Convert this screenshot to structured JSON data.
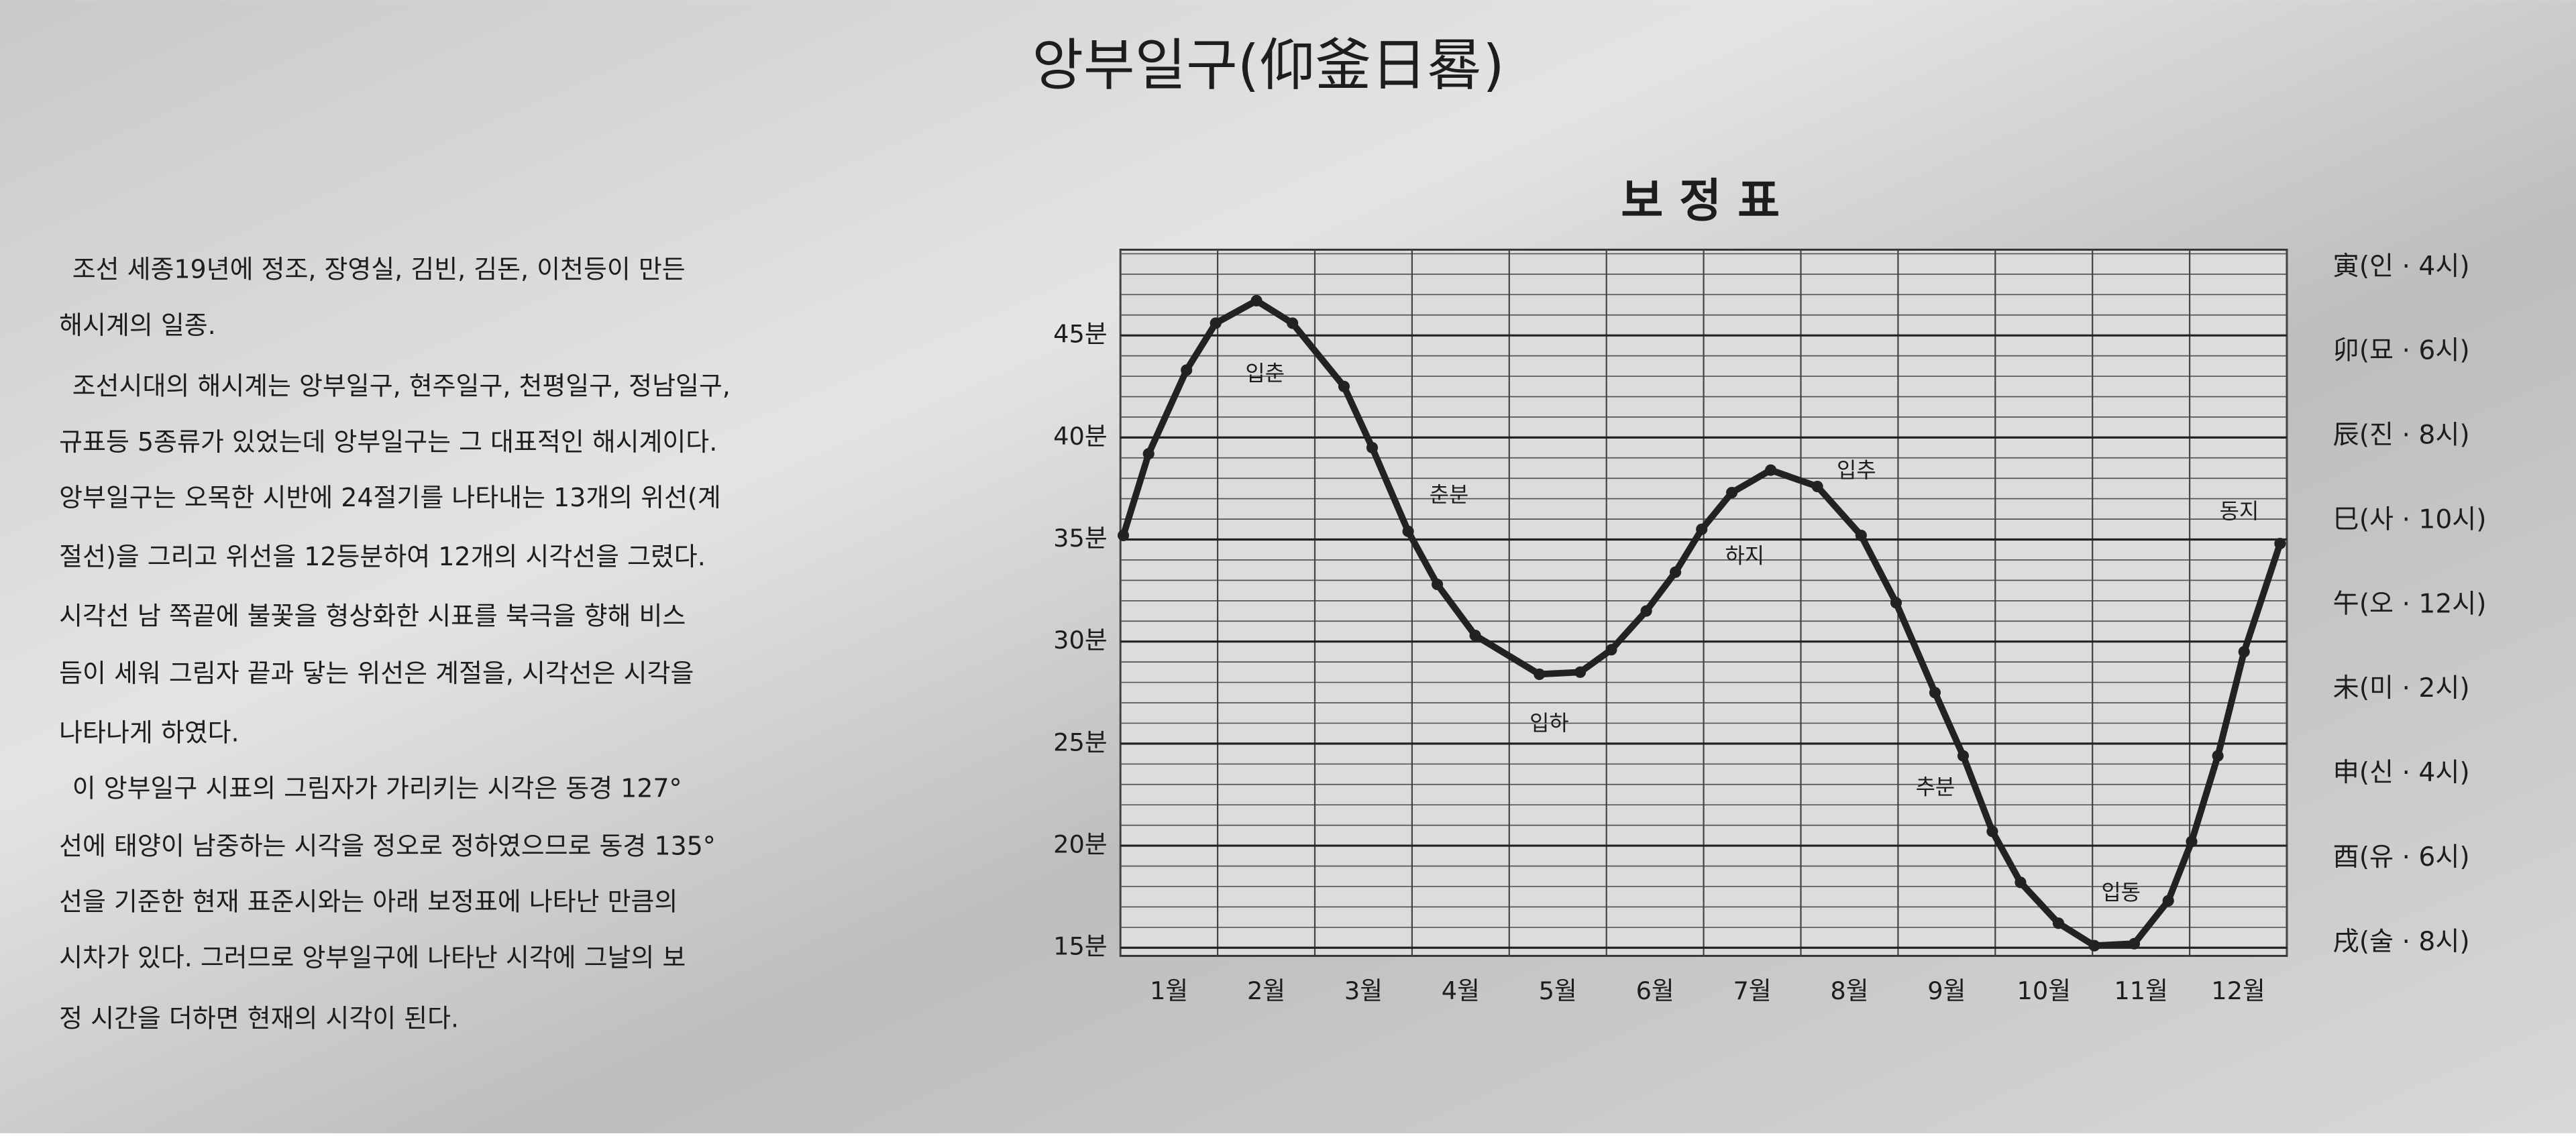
{
  "title": "앙부일구(仰釜日晷)",
  "text": [
    "조선 세종19년에 정조, 장영실, 김빈, 김돈, 이천등이 만든",
    "해시계의 일종.",
    "조선시대의 해시계는 앙부일구, 현주일구, 천평일구, 정남일구,",
    "규표등 5종류가 있었는데 앙부일구는 그 대표적인 해시계이다.",
    "앙부일구는 오목한 시반에 24절기를 나타내는 13개의 위선(계",
    "절선)을 그리고 위선을 12등분하여 12개의 시각선을 그렸다.",
    "시각선 남 쪽끝에 불꽃을 형상화한 시표를 북극을 향해 비스",
    "듬이 세워 그림자 끝과 닿는 위선은 계절을, 시각선은 시각을",
    "나타나게 하였다.",
    "이 앙부일구 시표의 그림자가 가리키는 시각은 동경 127°",
    "선에 태양이 남중하는 시각을 정오로 정하였으므로 동경 135°",
    "선을 기준한 현재 표준시와는 아래 보정표에 나타난 만큼의",
    "시차가 있다. 그러므로 앙부일구에 나타난 시각에 그날의 보",
    "정 시간을 더하면 현재의 시각이 된다."
  ],
  "chart_data": {
    "type": "line",
    "title": "보 정 표",
    "x": [
      0.03,
      0.29,
      0.68,
      0.98,
      1.4,
      1.77,
      2.3,
      2.59,
      2.96,
      3.26,
      3.65,
      4.31,
      4.73,
      5.05,
      5.41,
      5.71,
      5.98,
      6.29,
      6.69,
      7.17,
      7.62,
      7.98,
      8.38,
      8.67,
      8.97,
      9.26,
      9.65,
      10.02,
      10.43,
      10.78,
      11.02,
      11.29,
      11.56,
      11.93
    ],
    "values": [
      35.2,
      39.2,
      43.3,
      45.6,
      46.7,
      45.6,
      42.5,
      39.5,
      35.4,
      32.8,
      30.3,
      28.4,
      28.5,
      29.6,
      31.5,
      33.4,
      35.5,
      37.3,
      38.4,
      37.6,
      35.2,
      31.9,
      27.5,
      24.4,
      20.7,
      18.2,
      16.2,
      15.1,
      15.2,
      17.3,
      20.2,
      24.4,
      29.5,
      34.8
    ],
    "color": "#222222",
    "xlim": [
      0,
      12
    ],
    "xticks": [
      {
        "value": 0.5,
        "label": "1월"
      },
      {
        "value": 1.5,
        "label": "2월"
      },
      {
        "value": 2.5,
        "label": "3월"
      },
      {
        "value": 3.5,
        "label": "4월"
      },
      {
        "value": 4.5,
        "label": "5월"
      },
      {
        "value": 5.5,
        "label": "6월"
      },
      {
        "value": 6.5,
        "label": "7월"
      },
      {
        "value": 7.5,
        "label": "8월"
      },
      {
        "value": 8.5,
        "label": "9월"
      },
      {
        "value": 9.5,
        "label": "10월"
      },
      {
        "value": 10.5,
        "label": "11월"
      },
      {
        "value": 11.5,
        "label": "12월"
      }
    ],
    "ylim": [
      14.6,
      49.2
    ],
    "yticks": [
      {
        "value": 15,
        "label": "15분"
      },
      {
        "value": 20,
        "label": "20분"
      },
      {
        "value": 25,
        "label": "25분"
      },
      {
        "value": 30,
        "label": "30분"
      },
      {
        "value": 35,
        "label": "35분"
      },
      {
        "value": 40,
        "label": "40분"
      },
      {
        "value": 45,
        "label": "45분"
      }
    ],
    "annotations": [
      "입춘",
      "춘분",
      "입하",
      "하지",
      "입추",
      "추분",
      "입동",
      "동지"
    ],
    "hours": [
      "寅(인 · 4시)",
      "卯(묘 · 6시)",
      "辰(진 · 8시)",
      "巳(사 · 10시)",
      "午(오 · 12시)",
      "未(미 · 2시)",
      "申(신 · 4시)",
      "酉(유 · 6시)",
      "戌(술 · 8시)"
    ],
    "grid": true
  }
}
